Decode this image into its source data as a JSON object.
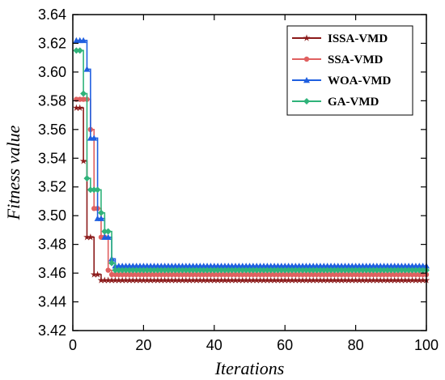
{
  "chart_data": {
    "type": "line",
    "title": "",
    "xlabel": "Iterations",
    "ylabel": "Fitness value",
    "xlim": [
      0,
      100
    ],
    "ylim": [
      3.42,
      3.64
    ],
    "xticks": [
      0,
      20,
      40,
      60,
      80,
      100
    ],
    "yticks": [
      3.42,
      3.44,
      3.46,
      3.48,
      3.5,
      3.52,
      3.54,
      3.56,
      3.58,
      3.6,
      3.62,
      3.64
    ],
    "xtick_labels": [
      "0",
      "20",
      "40",
      "60",
      "80",
      "100"
    ],
    "ytick_labels": [
      "3.42",
      "3.44",
      "3.46",
      "3.48",
      "3.50",
      "3.52",
      "3.54",
      "3.56",
      "3.58",
      "3.60",
      "3.62",
      "3.64"
    ],
    "grid": false,
    "legend_position": "top-right",
    "series": [
      {
        "name": "ISSA-VMD",
        "color": "#8b1a1a",
        "marker": "star",
        "x": [
          1,
          2,
          3,
          4,
          5,
          6,
          7,
          8,
          9,
          10,
          11,
          12,
          13,
          14,
          15,
          16,
          17,
          18,
          19,
          20,
          21,
          22,
          23,
          24,
          25,
          26,
          27,
          28,
          29,
          30,
          31,
          32,
          33,
          34,
          35,
          36,
          37,
          38,
          39,
          40,
          41,
          42,
          43,
          44,
          45,
          46,
          47,
          48,
          49,
          50,
          51,
          52,
          53,
          54,
          55,
          56,
          57,
          58,
          59,
          60,
          61,
          62,
          63,
          64,
          65,
          66,
          67,
          68,
          69,
          70,
          71,
          72,
          73,
          74,
          75,
          76,
          77,
          78,
          79,
          80,
          81,
          82,
          83,
          84,
          85,
          86,
          87,
          88,
          89,
          90,
          91,
          92,
          93,
          94,
          95,
          96,
          97,
          98,
          99,
          100
        ],
        "y": [
          3.575,
          3.575,
          3.538,
          3.485,
          3.485,
          3.459,
          3.459,
          3.455,
          3.455,
          3.455,
          3.455,
          3.455,
          3.455,
          3.455,
          3.455,
          3.455,
          3.455,
          3.455,
          3.455,
          3.455,
          3.455,
          3.455,
          3.455,
          3.455,
          3.455,
          3.455,
          3.455,
          3.455,
          3.455,
          3.455,
          3.455,
          3.455,
          3.455,
          3.455,
          3.455,
          3.455,
          3.455,
          3.455,
          3.455,
          3.455,
          3.455,
          3.455,
          3.455,
          3.455,
          3.455,
          3.455,
          3.455,
          3.455,
          3.455,
          3.455,
          3.455,
          3.455,
          3.455,
          3.455,
          3.455,
          3.455,
          3.455,
          3.455,
          3.455,
          3.455,
          3.455,
          3.455,
          3.455,
          3.455,
          3.455,
          3.455,
          3.455,
          3.455,
          3.455,
          3.455,
          3.455,
          3.455,
          3.455,
          3.455,
          3.455,
          3.455,
          3.455,
          3.455,
          3.455,
          3.455,
          3.455,
          3.455,
          3.455,
          3.455,
          3.455,
          3.455,
          3.455,
          3.455,
          3.455,
          3.455,
          3.455,
          3.455,
          3.455,
          3.455,
          3.455,
          3.455,
          3.455,
          3.455,
          3.455,
          3.455
        ]
      },
      {
        "name": "SSA-VMD",
        "color": "#e06060",
        "marker": "circle",
        "x": [
          1,
          2,
          3,
          4,
          5,
          6,
          7,
          8,
          9,
          10,
          11,
          12,
          13,
          14,
          15,
          16,
          17,
          18,
          19,
          20,
          21,
          22,
          23,
          24,
          25,
          26,
          27,
          28,
          29,
          30,
          31,
          32,
          33,
          34,
          35,
          36,
          37,
          38,
          39,
          40,
          41,
          42,
          43,
          44,
          45,
          46,
          47,
          48,
          49,
          50,
          51,
          52,
          53,
          54,
          55,
          56,
          57,
          58,
          59,
          60,
          61,
          62,
          63,
          64,
          65,
          66,
          67,
          68,
          69,
          70,
          71,
          72,
          73,
          74,
          75,
          76,
          77,
          78,
          79,
          80,
          81,
          82,
          83,
          84,
          85,
          86,
          87,
          88,
          89,
          90,
          91,
          92,
          93,
          94,
          95,
          96,
          97,
          98,
          99,
          100
        ],
        "y": [
          3.581,
          3.581,
          3.581,
          3.581,
          3.56,
          3.505,
          3.505,
          3.485,
          3.485,
          3.462,
          3.459,
          3.459,
          3.459,
          3.459,
          3.459,
          3.459,
          3.459,
          3.459,
          3.459,
          3.459,
          3.459,
          3.459,
          3.459,
          3.459,
          3.459,
          3.459,
          3.459,
          3.459,
          3.459,
          3.459,
          3.459,
          3.459,
          3.459,
          3.459,
          3.459,
          3.459,
          3.459,
          3.459,
          3.459,
          3.459,
          3.459,
          3.459,
          3.459,
          3.459,
          3.459,
          3.459,
          3.459,
          3.459,
          3.459,
          3.459,
          3.459,
          3.459,
          3.459,
          3.459,
          3.459,
          3.459,
          3.459,
          3.459,
          3.459,
          3.459,
          3.459,
          3.459,
          3.459,
          3.459,
          3.459,
          3.459,
          3.459,
          3.459,
          3.459,
          3.459,
          3.459,
          3.459,
          3.459,
          3.459,
          3.459,
          3.459,
          3.459,
          3.459,
          3.459,
          3.459,
          3.459,
          3.459,
          3.459,
          3.459,
          3.459,
          3.459,
          3.459,
          3.459,
          3.459,
          3.459,
          3.459,
          3.459,
          3.459,
          3.459,
          3.459,
          3.459,
          3.459,
          3.459,
          3.459,
          3.459
        ]
      },
      {
        "name": "WOA-VMD",
        "color": "#1f5fe0",
        "marker": "triangle",
        "x": [
          1,
          2,
          3,
          4,
          5,
          6,
          7,
          8,
          9,
          10,
          11,
          12,
          13,
          14,
          15,
          16,
          17,
          18,
          19,
          20,
          21,
          22,
          23,
          24,
          25,
          26,
          27,
          28,
          29,
          30,
          31,
          32,
          33,
          34,
          35,
          36,
          37,
          38,
          39,
          40,
          41,
          42,
          43,
          44,
          45,
          46,
          47,
          48,
          49,
          50,
          51,
          52,
          53,
          54,
          55,
          56,
          57,
          58,
          59,
          60,
          61,
          62,
          63,
          64,
          65,
          66,
          67,
          68,
          69,
          70,
          71,
          72,
          73,
          74,
          75,
          76,
          77,
          78,
          79,
          80,
          81,
          82,
          83,
          84,
          85,
          86,
          87,
          88,
          89,
          90,
          91,
          92,
          93,
          94,
          95,
          96,
          97,
          98,
          99,
          100
        ],
        "y": [
          3.622,
          3.622,
          3.622,
          3.602,
          3.554,
          3.554,
          3.498,
          3.498,
          3.485,
          3.485,
          3.47,
          3.465,
          3.465,
          3.465,
          3.465,
          3.465,
          3.465,
          3.465,
          3.465,
          3.465,
          3.465,
          3.465,
          3.465,
          3.465,
          3.465,
          3.465,
          3.465,
          3.465,
          3.465,
          3.465,
          3.465,
          3.465,
          3.465,
          3.465,
          3.465,
          3.465,
          3.465,
          3.465,
          3.465,
          3.465,
          3.465,
          3.465,
          3.465,
          3.465,
          3.465,
          3.465,
          3.465,
          3.465,
          3.465,
          3.465,
          3.465,
          3.465,
          3.465,
          3.465,
          3.465,
          3.465,
          3.465,
          3.465,
          3.465,
          3.465,
          3.465,
          3.465,
          3.465,
          3.465,
          3.465,
          3.465,
          3.465,
          3.465,
          3.465,
          3.465,
          3.465,
          3.465,
          3.465,
          3.465,
          3.465,
          3.465,
          3.465,
          3.465,
          3.465,
          3.465,
          3.465,
          3.465,
          3.465,
          3.465,
          3.465,
          3.465,
          3.465,
          3.465,
          3.465,
          3.465,
          3.465,
          3.465,
          3.465,
          3.465,
          3.465,
          3.465,
          3.465,
          3.465,
          3.465,
          3.465
        ]
      },
      {
        "name": "GA-VMD",
        "color": "#2fb37a",
        "marker": "diamond",
        "x": [
          1,
          2,
          3,
          4,
          5,
          6,
          7,
          8,
          9,
          10,
          11,
          12,
          13,
          14,
          15,
          16,
          17,
          18,
          19,
          20,
          21,
          22,
          23,
          24,
          25,
          26,
          27,
          28,
          29,
          30,
          31,
          32,
          33,
          34,
          35,
          36,
          37,
          38,
          39,
          40,
          41,
          42,
          43,
          44,
          45,
          46,
          47,
          48,
          49,
          50,
          51,
          52,
          53,
          54,
          55,
          56,
          57,
          58,
          59,
          60,
          61,
          62,
          63,
          64,
          65,
          66,
          67,
          68,
          69,
          70,
          71,
          72,
          73,
          74,
          75,
          76,
          77,
          78,
          79,
          80,
          81,
          82,
          83,
          84,
          85,
          86,
          87,
          88,
          89,
          90,
          91,
          92,
          93,
          94,
          95,
          96,
          97,
          98,
          99,
          100
        ],
        "y": [
          3.615,
          3.615,
          3.585,
          3.526,
          3.518,
          3.518,
          3.518,
          3.502,
          3.489,
          3.489,
          3.467,
          3.462,
          3.462,
          3.462,
          3.462,
          3.462,
          3.462,
          3.462,
          3.462,
          3.462,
          3.462,
          3.462,
          3.462,
          3.462,
          3.462,
          3.462,
          3.462,
          3.462,
          3.462,
          3.462,
          3.462,
          3.462,
          3.462,
          3.462,
          3.462,
          3.462,
          3.462,
          3.462,
          3.462,
          3.462,
          3.462,
          3.462,
          3.462,
          3.462,
          3.462,
          3.462,
          3.462,
          3.462,
          3.462,
          3.462,
          3.462,
          3.462,
          3.462,
          3.462,
          3.462,
          3.462,
          3.462,
          3.462,
          3.462,
          3.462,
          3.462,
          3.462,
          3.462,
          3.462,
          3.462,
          3.462,
          3.462,
          3.462,
          3.462,
          3.462,
          3.462,
          3.462,
          3.462,
          3.462,
          3.462,
          3.462,
          3.462,
          3.462,
          3.462,
          3.462,
          3.462,
          3.462,
          3.462,
          3.462,
          3.462,
          3.462,
          3.462,
          3.462,
          3.462,
          3.462,
          3.462,
          3.462,
          3.462,
          3.462,
          3.462,
          3.462,
          3.462,
          3.462,
          3.462,
          3.462
        ]
      }
    ]
  }
}
